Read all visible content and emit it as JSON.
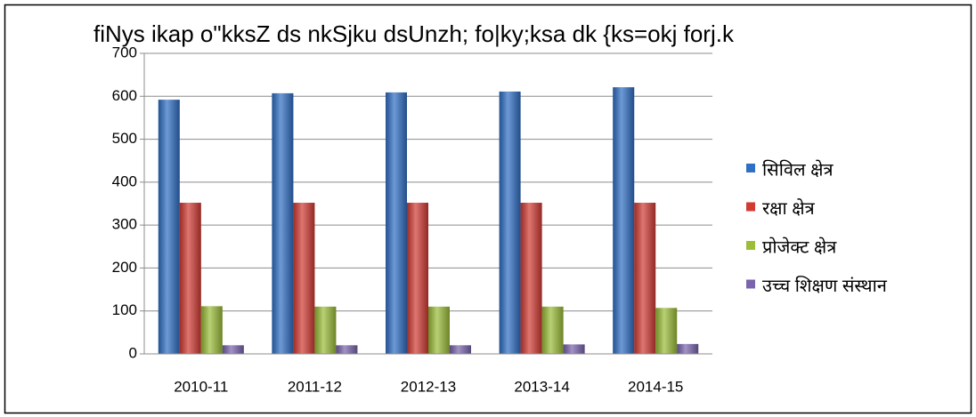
{
  "chart_data": {
    "type": "bar",
    "title": "fiNys ikap o\"kksZ ds nkSjku dsUnzh; fo|ky;ksa dk {ks=okj forj.k",
    "categories": [
      "2010-11",
      "2011-12",
      "2012-13",
      "2013-14",
      "2014-15"
    ],
    "series": [
      {
        "name": "सिविल क्षेत्र",
        "color": "#2f6fc4",
        "values": [
          592,
          607,
          609,
          611,
          621
        ]
      },
      {
        "name": "रक्षा क्षेत्र",
        "color": "#d23b33",
        "values": [
          352,
          352,
          352,
          352,
          352
        ]
      },
      {
        "name": "प्रोजेक्ट क्षेत्र",
        "color": "#9bbd38",
        "values": [
          111,
          110,
          110,
          110,
          107
        ]
      },
      {
        "name": "उच्च शिक्षण संस्थान",
        "color": "#7a64ad",
        "values": [
          20,
          20,
          20,
          22,
          23
        ]
      }
    ],
    "ylim": [
      0,
      700
    ],
    "yticks": [
      0,
      100,
      200,
      300,
      400,
      500,
      600,
      700
    ],
    "grid": true,
    "legend": "right"
  }
}
